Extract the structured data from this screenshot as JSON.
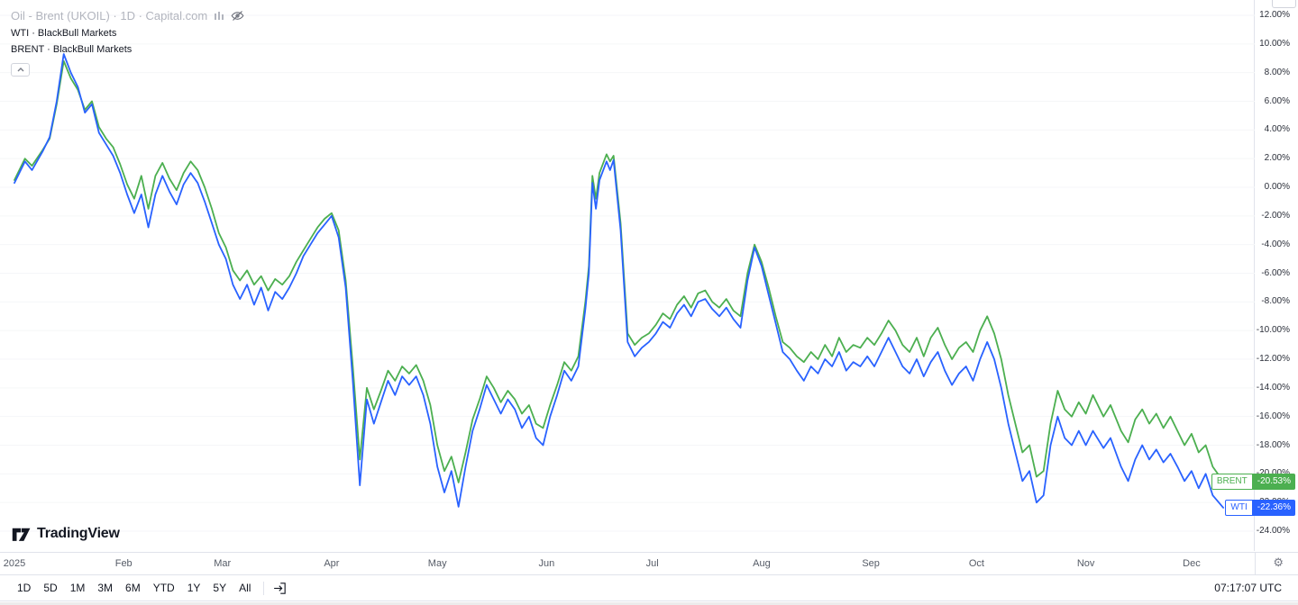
{
  "header": {
    "symbol_title": "Oil - Brent (UKOIL) · 1D · Capital.com",
    "series": [
      {
        "label": "WTI · BlackBull Markets"
      },
      {
        "label": "BRENT · BlackBull Markets"
      }
    ]
  },
  "chart_data": {
    "type": "line",
    "title": "Oil - Brent (UKOIL) · 1D · Capital.com — YTD % change 2025",
    "x_unit": "days since 2025-01-01",
    "ylim": [
      -24,
      12
    ],
    "y_ticks_pct": [
      12,
      10,
      8,
      6,
      4,
      2,
      0,
      -2,
      -4,
      -6,
      -8,
      -10,
      -12,
      -14,
      -16,
      -18,
      -20,
      -22,
      -24
    ],
    "x_tick_labels": [
      "2025",
      "Feb",
      "Mar",
      "Apr",
      "May",
      "Jun",
      "Jul",
      "Aug",
      "Sep",
      "Oct",
      "Nov",
      "Dec"
    ],
    "x_tick_days": [
      0,
      31,
      59,
      90,
      120,
      151,
      181,
      212,
      243,
      273,
      304,
      334
    ],
    "grid": "faint-horizontal",
    "legend_position": "top-left",
    "x": [
      0,
      3,
      5,
      8,
      10,
      12,
      14,
      16,
      18,
      20,
      22,
      24,
      26,
      28,
      30,
      32,
      34,
      36,
      38,
      40,
      42,
      44,
      46,
      48,
      50,
      52,
      54,
      56,
      58,
      60,
      62,
      64,
      66,
      68,
      70,
      72,
      74,
      76,
      78,
      80,
      82,
      84,
      86,
      88,
      90,
      92,
      94,
      96,
      98,
      100,
      102,
      104,
      106,
      108,
      110,
      112,
      114,
      116,
      118,
      120,
      122,
      124,
      126,
      128,
      130,
      132,
      134,
      136,
      138,
      140,
      142,
      144,
      146,
      148,
      150,
      152,
      154,
      156,
      158,
      160,
      162,
      163,
      164,
      165,
      166,
      168,
      169,
      170,
      172,
      174,
      176,
      178,
      180,
      182,
      184,
      186,
      188,
      190,
      192,
      194,
      196,
      198,
      200,
      202,
      204,
      206,
      208,
      210,
      212,
      214,
      216,
      218,
      220,
      222,
      224,
      226,
      228,
      230,
      232,
      234,
      236,
      238,
      240,
      242,
      244,
      246,
      248,
      250,
      252,
      254,
      256,
      258,
      260,
      262,
      264,
      266,
      268,
      270,
      272,
      274,
      276,
      278,
      280,
      282,
      284,
      286,
      288,
      290,
      292,
      294,
      296,
      298,
      300,
      302,
      304,
      306,
      309,
      311,
      314,
      316,
      318,
      320,
      322,
      324,
      326,
      328,
      330,
      332,
      334,
      336,
      338,
      340,
      343
    ],
    "series": [
      {
        "name": "WTI",
        "broker": "BlackBull Markets",
        "color": "#2962ff",
        "last_label": "-22.36%",
        "values": [
          0.3,
          1.8,
          1.2,
          2.5,
          3.5,
          6.0,
          9.3,
          8.0,
          7.0,
          5.2,
          5.8,
          3.8,
          3.0,
          2.2,
          1.0,
          -0.5,
          -1.8,
          -0.5,
          -2.8,
          -0.5,
          0.8,
          -0.3,
          -1.2,
          0.2,
          1.0,
          0.3,
          -1.0,
          -2.5,
          -4.0,
          -5.0,
          -6.8,
          -7.8,
          -6.8,
          -8.2,
          -7.0,
          -8.6,
          -7.3,
          -7.8,
          -7.0,
          -6.0,
          -4.8,
          -4.0,
          -3.2,
          -2.6,
          -2.0,
          -3.5,
          -7.0,
          -13.5,
          -20.8,
          -14.8,
          -16.5,
          -15.0,
          -13.5,
          -14.5,
          -13.2,
          -13.8,
          -13.2,
          -14.5,
          -16.5,
          -19.5,
          -21.3,
          -19.8,
          -22.3,
          -19.5,
          -17.0,
          -15.5,
          -13.8,
          -14.8,
          -15.8,
          -14.8,
          -15.5,
          -16.8,
          -16.0,
          -17.5,
          -18.0,
          -16.0,
          -14.5,
          -12.8,
          -13.5,
          -12.5,
          -8.5,
          -6.0,
          0.3,
          -1.5,
          0.5,
          1.8,
          1.2,
          1.9,
          -3.0,
          -10.8,
          -11.8,
          -11.2,
          -10.8,
          -10.2,
          -9.4,
          -9.8,
          -8.8,
          -8.2,
          -9.0,
          -8.0,
          -7.8,
          -8.5,
          -9.0,
          -8.4,
          -9.2,
          -9.8,
          -6.5,
          -4.2,
          -5.5,
          -7.5,
          -9.5,
          -11.5,
          -12.0,
          -12.8,
          -13.5,
          -12.5,
          -13.0,
          -12.0,
          -12.5,
          -11.5,
          -12.8,
          -12.2,
          -12.5,
          -11.8,
          -12.5,
          -11.5,
          -10.5,
          -11.5,
          -12.5,
          -13.0,
          -12.0,
          -13.2,
          -12.2,
          -11.5,
          -12.8,
          -13.8,
          -13.0,
          -12.5,
          -13.5,
          -12.0,
          -10.8,
          -12.0,
          -14.0,
          -16.5,
          -18.5,
          -20.5,
          -19.8,
          -22.0,
          -21.5,
          -18.0,
          -16.0,
          -17.5,
          -18.0,
          -17.0,
          -18.0,
          -17.0,
          -18.2,
          -17.5,
          -19.5,
          -20.5,
          -19.0,
          -18.0,
          -19.0,
          -18.3,
          -19.2,
          -18.6,
          -19.5,
          -20.5,
          -19.8,
          -21.0,
          -20.0,
          -21.5,
          -22.36
        ]
      },
      {
        "name": "BRENT",
        "broker": "BlackBull Markets",
        "color": "#4caf50",
        "last_label": "-20.53%",
        "values": [
          0.5,
          2.0,
          1.5,
          2.6,
          3.4,
          5.8,
          8.8,
          7.6,
          6.8,
          5.4,
          6.0,
          4.2,
          3.4,
          2.8,
          1.6,
          0.2,
          -0.8,
          0.8,
          -1.5,
          0.8,
          1.7,
          0.6,
          -0.2,
          1.0,
          1.8,
          1.2,
          0.0,
          -1.5,
          -3.2,
          -4.2,
          -5.8,
          -6.5,
          -5.8,
          -6.8,
          -6.2,
          -7.2,
          -6.4,
          -6.8,
          -6.2,
          -5.2,
          -4.4,
          -3.6,
          -2.8,
          -2.2,
          -1.8,
          -3.0,
          -6.5,
          -12.5,
          -19.0,
          -14.0,
          -15.5,
          -14.2,
          -12.8,
          -13.5,
          -12.5,
          -13.0,
          -12.4,
          -13.5,
          -15.2,
          -18.0,
          -19.8,
          -18.8,
          -20.6,
          -18.5,
          -16.2,
          -14.8,
          -13.2,
          -14.0,
          -15.0,
          -14.2,
          -14.8,
          -15.8,
          -15.2,
          -16.5,
          -16.8,
          -15.2,
          -13.8,
          -12.2,
          -12.8,
          -11.8,
          -8.0,
          -5.5,
          0.8,
          -0.8,
          1.0,
          2.3,
          1.8,
          2.2,
          -2.5,
          -10.2,
          -11.0,
          -10.5,
          -10.2,
          -9.6,
          -8.8,
          -9.2,
          -8.2,
          -7.6,
          -8.4,
          -7.4,
          -7.2,
          -8.0,
          -8.4,
          -7.8,
          -8.6,
          -9.0,
          -6.0,
          -4.0,
          -5.2,
          -7.0,
          -9.0,
          -10.8,
          -11.2,
          -11.8,
          -12.2,
          -11.5,
          -12.0,
          -11.0,
          -11.8,
          -10.5,
          -11.5,
          -11.0,
          -11.2,
          -10.5,
          -11.0,
          -10.2,
          -9.3,
          -10.0,
          -11.0,
          -11.5,
          -10.5,
          -11.8,
          -10.5,
          -9.8,
          -11.0,
          -12.0,
          -11.2,
          -10.8,
          -11.5,
          -10.0,
          -9.0,
          -10.2,
          -12.0,
          -14.5,
          -16.5,
          -18.5,
          -18.0,
          -20.2,
          -19.8,
          -16.5,
          -14.2,
          -15.5,
          -16.0,
          -15.0,
          -15.8,
          -14.5,
          -16.0,
          -15.2,
          -17.0,
          -17.8,
          -16.2,
          -15.5,
          -16.5,
          -15.8,
          -16.8,
          -16.0,
          -17.0,
          -18.0,
          -17.2,
          -18.5,
          -18.0,
          -19.5,
          -20.53
        ]
      }
    ]
  },
  "price_labels": [
    {
      "name": "BRENT",
      "value": "-20.53%",
      "pct": -20.53,
      "color": "#4caf50"
    },
    {
      "name": "WTI",
      "value": "-22.36%",
      "pct": -22.36,
      "color": "#2962ff"
    }
  ],
  "toolbar": {
    "ranges": [
      "1D",
      "5D",
      "1M",
      "3M",
      "6M",
      "YTD",
      "1Y",
      "5Y",
      "All"
    ],
    "timezone_label": "07:17:07 UTC"
  },
  "branding": {
    "logo_text": "TradingView"
  },
  "colors": {
    "wti": "#2962ff",
    "brent": "#4caf50",
    "axis_line": "#e0e3eb",
    "muted_text": "#b2b5be"
  }
}
